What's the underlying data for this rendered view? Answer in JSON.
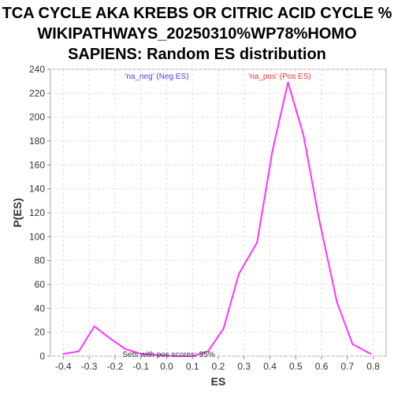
{
  "chart_data": {
    "type": "line",
    "title_lines": [
      "TCA CYCLE AKA KREBS OR CITRIC ACID CYCLE %",
      "WIKIPATHWAYS_20250310%WP78%HOMO",
      "SAPIENS: Random ES distribution"
    ],
    "xlabel": "ES",
    "ylabel": "P(ES)",
    "xlim": [
      -0.45,
      0.85
    ],
    "ylim": [
      0,
      240
    ],
    "x_ticks": [
      "-0.4",
      "-0.3",
      "-0.2",
      "-0.1",
      "0.0",
      "0.1",
      "0.2",
      "0.3",
      "0.4",
      "0.5",
      "0.6",
      "0.7",
      "0.8"
    ],
    "y_ticks": [
      "0",
      "20",
      "40",
      "60",
      "80",
      "100",
      "120",
      "140",
      "160",
      "180",
      "200",
      "220",
      "240"
    ],
    "grid": true,
    "series": [
      {
        "color": "#ff33ff",
        "x": [
          -0.4,
          -0.34,
          -0.28,
          -0.22,
          -0.16,
          -0.1,
          -0.04,
          0.04,
          0.1,
          0.16,
          0.22,
          0.28,
          0.35,
          0.41,
          0.47,
          0.53,
          0.59,
          0.66,
          0.72,
          0.79
        ],
        "y": [
          2,
          4,
          25,
          15,
          6,
          2,
          1,
          0,
          0,
          4,
          23,
          69,
          95,
          172,
          229,
          185,
          115,
          45,
          10,
          2
        ]
      }
    ],
    "legend": [
      {
        "text": "'na_neg' (Neg ES)",
        "color": "#4444ee"
      },
      {
        "text": "'na_pos' (Pos ES)",
        "color": "#ee3333"
      }
    ],
    "annotation": "Sets with pos scores: 95%"
  }
}
